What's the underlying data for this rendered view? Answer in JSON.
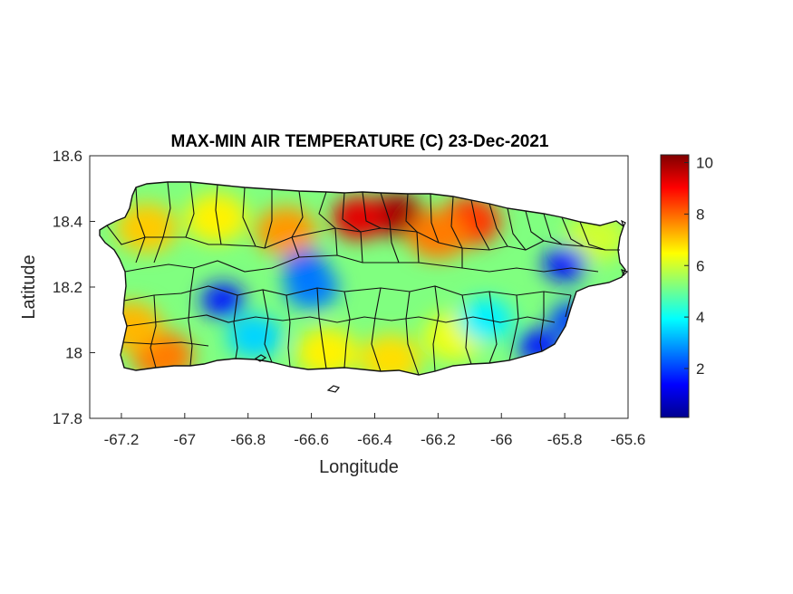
{
  "chart_data": {
    "type": "heatmap",
    "title": "MAX-MIN AIR TEMPERATURE (C) 23-Dec-2021",
    "xlabel": "Longitude",
    "ylabel": "Latitude",
    "xlim": [
      -67.3,
      -65.6
    ],
    "ylim": [
      17.8,
      18.6
    ],
    "xticks": [
      -67.2,
      -67,
      -66.8,
      -66.6,
      -66.4,
      -66.2,
      -66,
      -65.8,
      -65.6
    ],
    "yticks": [
      17.8,
      18,
      18.2,
      18.4,
      18.6
    ],
    "colorbar": {
      "min": 0.1,
      "max": 10.3,
      "ticks": [
        2,
        4,
        6,
        8,
        10
      ],
      "colormap": "jet"
    },
    "region": "Puerto Rico (municipality boundaries)",
    "hotspots": [
      {
        "lon": -66.33,
        "lat": 18.42,
        "value": 10.0
      },
      {
        "lon": -66.45,
        "lat": 18.41,
        "value": 9.3
      },
      {
        "lon": -66.1,
        "lat": 18.4,
        "value": 8.5
      },
      {
        "lon": -66.2,
        "lat": 18.36,
        "value": 7.8
      },
      {
        "lon": -66.68,
        "lat": 18.37,
        "value": 7.5
      },
      {
        "lon": -67.07,
        "lat": 17.99,
        "value": 7.8
      },
      {
        "lon": -67.17,
        "lat": 18.08,
        "value": 7.2
      },
      {
        "lon": -67.12,
        "lat": 18.38,
        "value": 7.0
      },
      {
        "lon": -66.9,
        "lat": 18.41,
        "value": 6.6
      },
      {
        "lon": -66.55,
        "lat": 18.0,
        "value": 6.6
      },
      {
        "lon": -66.35,
        "lat": 17.98,
        "value": 6.8
      },
      {
        "lon": -66.15,
        "lat": 18.05,
        "value": 6.3
      },
      {
        "lon": -65.7,
        "lat": 18.35,
        "value": 6.0
      }
    ],
    "coldspots": [
      {
        "lon": -66.88,
        "lat": 18.16,
        "value": 1.6
      },
      {
        "lon": -66.62,
        "lat": 18.26,
        "value": 2.3
      },
      {
        "lon": -66.6,
        "lat": 18.2,
        "value": 2.6
      },
      {
        "lon": -65.8,
        "lat": 18.27,
        "value": 1.5
      },
      {
        "lon": -65.88,
        "lat": 18.02,
        "value": 1.6
      },
      {
        "lon": -65.78,
        "lat": 18.1,
        "value": 2.0
      },
      {
        "lon": -66.78,
        "lat": 18.05,
        "value": 3.5
      },
      {
        "lon": -66.05,
        "lat": 18.1,
        "value": 3.8
      }
    ],
    "background_value": 5.2
  }
}
